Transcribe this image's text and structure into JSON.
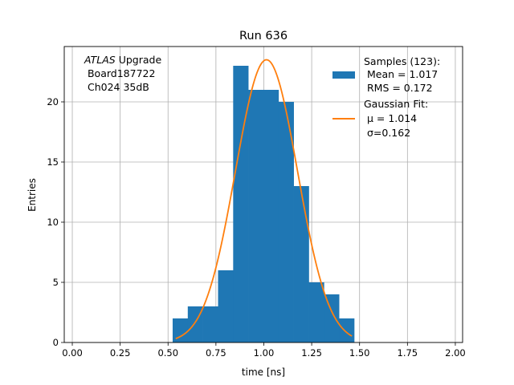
{
  "chart_data": {
    "type": "bar",
    "title": "Run 636",
    "xlabel": "time [ns]",
    "ylabel": "Entries",
    "xlim": [
      -0.042,
      2.038
    ],
    "ylim": [
      0,
      24.6
    ],
    "grid": true,
    "xticks": [
      0.0,
      0.25,
      0.5,
      0.75,
      1.0,
      1.25,
      1.5,
      1.75,
      2.0
    ],
    "xtick_labels": [
      "0.00",
      "0.25",
      "0.50",
      "0.75",
      "1.00",
      "1.25",
      "1.50",
      "1.75",
      "2.00"
    ],
    "yticks": [
      0,
      5,
      10,
      15,
      20
    ],
    "ytick_labels": [
      "0",
      "5",
      "10",
      "15",
      "20"
    ],
    "histogram": {
      "name": "Samples",
      "color": "#1f77b4",
      "bin_edges": [
        0.524,
        0.603,
        0.682,
        0.761,
        0.84,
        0.919,
        0.998,
        1.077,
        1.156,
        1.235,
        1.314,
        1.393,
        1.472
      ],
      "counts": [
        2,
        3,
        3,
        6,
        23,
        21,
        21,
        20,
        13,
        5,
        4,
        2
      ]
    },
    "fit": {
      "name": "Gaussian Fit",
      "color": "#ff7f0e",
      "amplitude": 23.5,
      "mu": 1.014,
      "sigma": 0.162,
      "x_range": [
        0.54,
        1.46
      ]
    },
    "annotation": {
      "line1_italic": "ATLAS",
      "line1_rest": " Upgrade",
      "line2": " Board187722",
      "line3": " Ch024 35dB"
    },
    "legend": {
      "placement": "top-right",
      "hist_lines": [
        "Samples (123):",
        " Mean = 1.017",
        " RMS = 0.172"
      ],
      "fit_lines": [
        "Gaussian Fit:",
        " μ = 1.014",
        " σ=0.162"
      ]
    }
  }
}
